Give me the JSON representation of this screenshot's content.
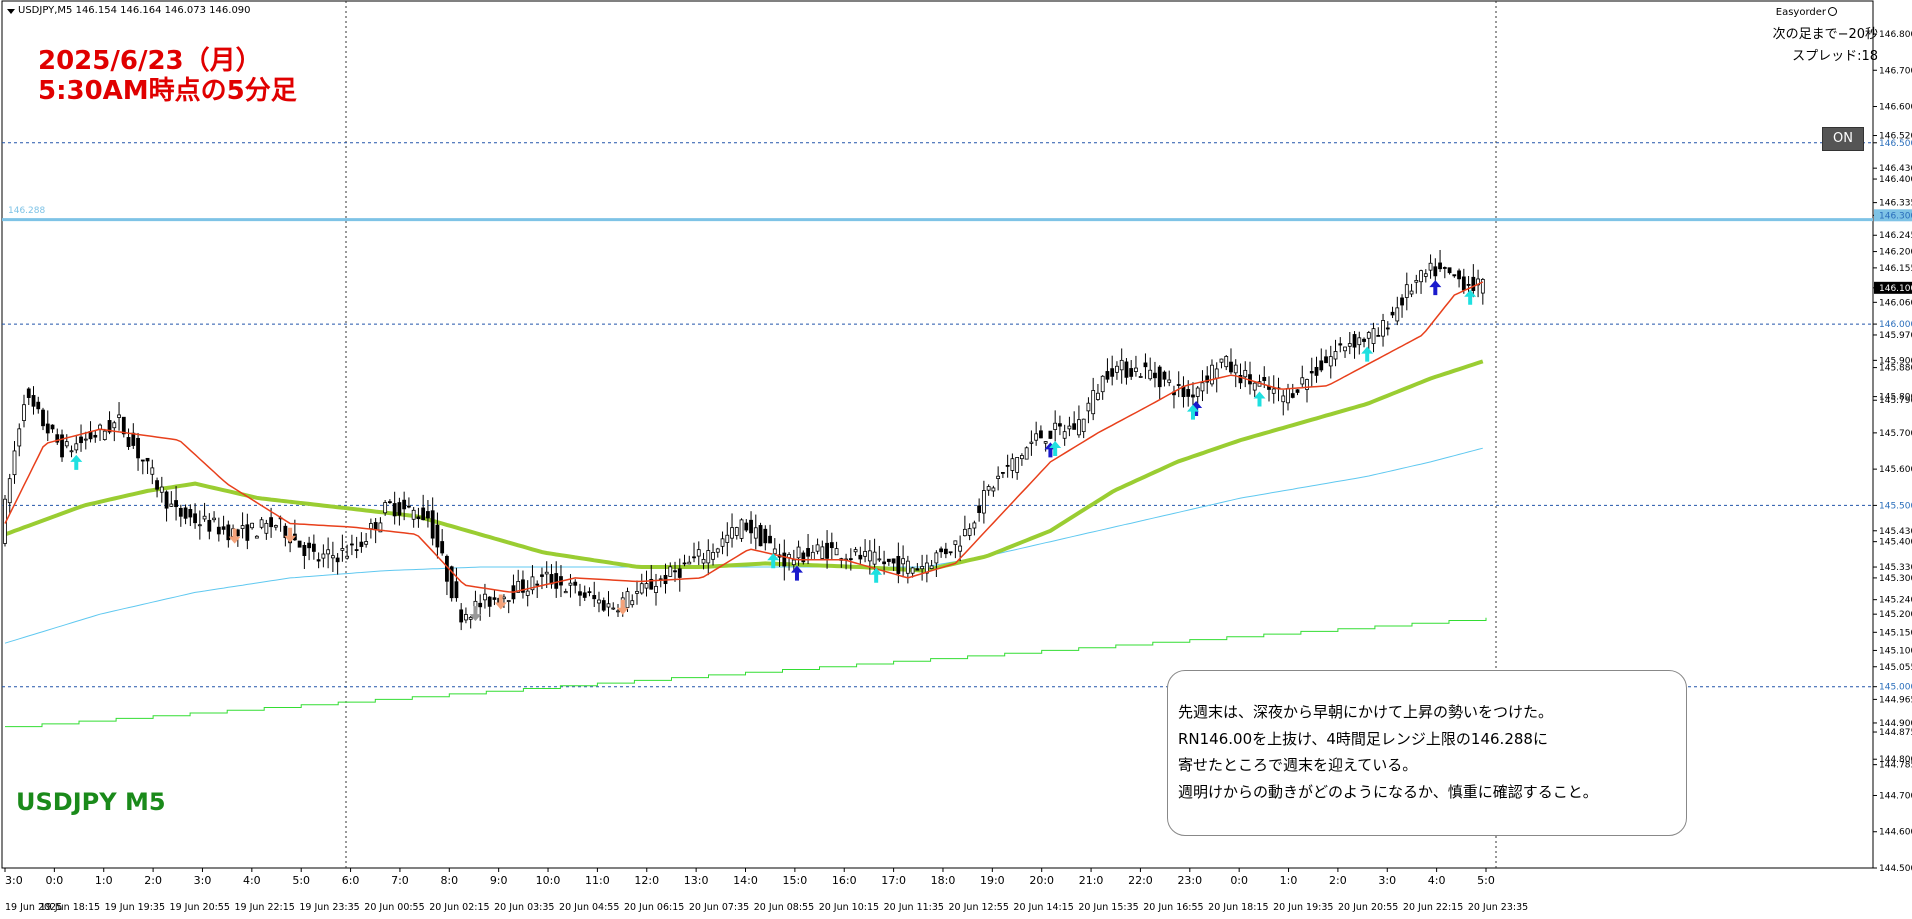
{
  "header": {
    "symbol_info": "USDJPY,M5  146.154 146.164 146.073 146.090",
    "ea_name": "Easyorder",
    "next_bar": "次の足まで−20秒",
    "spread": "スプレッド:18",
    "on_button": "ON"
  },
  "title": {
    "line1": "2025/6/23（月）",
    "line2": "5:30AM時点の5分足"
  },
  "symbol_label": "USDJPY M5",
  "note": {
    "lines": [
      "先週末は、深夜から早朝にかけて上昇の勢いをつけた。",
      "RN146.00を上抜け、4時間足レンジ上限の146.288に",
      "寄せたところで週末を迎えている。",
      "週明けからの動きがどのようになるか、慎重に確認すること。"
    ]
  },
  "level_label": "146.288",
  "colors": {
    "title": "#e00000",
    "symbol_label": "#1a8a1a",
    "level_line": "#7ec3e6",
    "ma_fast": "#e8401c",
    "ma_slow": "#9acd32",
    "ma_blue": "#5fc8f0",
    "ma_green": "#33dd33",
    "grid": "#2255aa"
  },
  "chart_data": {
    "type": "candlestick",
    "symbol": "USDJPY",
    "timeframe": "M5",
    "ylim": [
      144.5,
      146.9
    ],
    "price_axis_labels": [
      "146.800",
      "146.700",
      "146.600",
      "146.520",
      "146.500",
      "146.430",
      "146.400",
      "146.335",
      "146.300",
      "146.245",
      "146.200",
      "146.155",
      "146.100",
      "146.060",
      "146.000",
      "145.970",
      "145.900",
      "145.880",
      "145.800",
      "145.790",
      "145.700",
      "145.600",
      "145.500",
      "145.430",
      "145.400",
      "145.330",
      "145.300",
      "145.240",
      "145.200",
      "145.150",
      "145.100",
      "145.055",
      "145.000",
      "144.965",
      "144.900",
      "144.875",
      "144.800",
      "144.785",
      "144.700",
      "144.600",
      "144.500"
    ],
    "time_axis_top": [
      "3:0",
      "0:0",
      "1:0",
      "2:0",
      "3:0",
      "4:0",
      "5:0",
      "6:0",
      "7:0",
      "8:0",
      "9:0",
      "10:0",
      "11:0",
      "12:0",
      "13:0",
      "14:0",
      "15:0",
      "16:0",
      "17:0",
      "18:0",
      "19:0",
      "20:0",
      "21:0",
      "22:0",
      "23:0",
      "0:0",
      "1:0",
      "2:0",
      "3:0",
      "4:0",
      "5:0"
    ],
    "time_axis_bottom": [
      "19 Jun 2025",
      "19 Jun 18:15",
      "19 Jun 19:35",
      "19 Jun 20:55",
      "19 Jun 22:15",
      "19 Jun 23:35",
      "20 Jun 00:55",
      "20 Jun 02:15",
      "20 Jun 03:35",
      "20 Jun 04:55",
      "20 Jun 06:15",
      "20 Jun 07:35",
      "20 Jun 08:55",
      "20 Jun 10:15",
      "20 Jun 11:35",
      "20 Jun 12:55",
      "20 Jun 14:15",
      "20 Jun 15:35",
      "20 Jun 16:55",
      "20 Jun 18:15",
      "20 Jun 19:35",
      "20 Jun 20:55",
      "20 Jun 22:15",
      "20 Jun 23:35"
    ],
    "horizontal_levels": [
      146.5,
      146.288,
      146.0,
      145.5,
      145.0
    ],
    "price_path": [
      [
        0,
        145.42
      ],
      [
        15,
        145.8
      ],
      [
        40,
        145.65
      ],
      [
        75,
        145.73
      ],
      [
        110,
        145.48
      ],
      [
        150,
        145.42
      ],
      [
        175,
        145.45
      ],
      [
        200,
        145.35
      ],
      [
        225,
        145.38
      ],
      [
        245,
        145.5
      ],
      [
        270,
        145.47
      ],
      [
        290,
        145.2
      ],
      [
        315,
        145.25
      ],
      [
        345,
        145.3
      ],
      [
        385,
        145.22
      ],
      [
        420,
        145.3
      ],
      [
        450,
        145.38
      ],
      [
        470,
        145.45
      ],
      [
        495,
        145.35
      ],
      [
        520,
        145.38
      ],
      [
        560,
        145.34
      ],
      [
        580,
        145.33
      ],
      [
        605,
        145.4
      ],
      [
        625,
        145.55
      ],
      [
        655,
        145.69
      ],
      [
        680,
        145.72
      ],
      [
        700,
        145.88
      ],
      [
        725,
        145.87
      ],
      [
        750,
        145.8
      ],
      [
        770,
        145.9
      ],
      [
        790,
        145.84
      ],
      [
        810,
        145.8
      ],
      [
        830,
        145.87
      ],
      [
        850,
        145.95
      ],
      [
        870,
        145.97
      ],
      [
        890,
        146.1
      ],
      [
        905,
        146.15
      ],
      [
        935,
        146.1
      ]
    ],
    "last_close": 146.09,
    "ma_fast_path": [
      [
        0,
        145.45
      ],
      [
        25,
        145.67
      ],
      [
        60,
        145.71
      ],
      [
        110,
        145.68
      ],
      [
        140,
        145.56
      ],
      [
        180,
        145.45
      ],
      [
        220,
        145.44
      ],
      [
        260,
        145.42
      ],
      [
        290,
        145.28
      ],
      [
        320,
        145.26
      ],
      [
        360,
        145.3
      ],
      [
        400,
        145.29
      ],
      [
        440,
        145.3
      ],
      [
        470,
        145.38
      ],
      [
        500,
        145.35
      ],
      [
        530,
        145.35
      ],
      [
        570,
        145.3
      ],
      [
        600,
        145.34
      ],
      [
        630,
        145.48
      ],
      [
        660,
        145.62
      ],
      [
        690,
        145.7
      ],
      [
        720,
        145.77
      ],
      [
        745,
        145.83
      ],
      [
        775,
        145.86
      ],
      [
        805,
        145.82
      ],
      [
        835,
        145.83
      ],
      [
        865,
        145.9
      ],
      [
        895,
        145.97
      ],
      [
        915,
        146.08
      ],
      [
        935,
        146.12
      ]
    ],
    "ma_slow_path": [
      [
        0,
        145.42
      ],
      [
        50,
        145.5
      ],
      [
        90,
        145.54
      ],
      [
        120,
        145.56
      ],
      [
        160,
        145.52
      ],
      [
        220,
        145.49
      ],
      [
        260,
        145.47
      ],
      [
        300,
        145.42
      ],
      [
        340,
        145.37
      ],
      [
        400,
        145.33
      ],
      [
        440,
        145.33
      ],
      [
        480,
        145.34
      ],
      [
        540,
        145.33
      ],
      [
        580,
        145.32
      ],
      [
        620,
        145.36
      ],
      [
        660,
        145.43
      ],
      [
        700,
        145.54
      ],
      [
        740,
        145.62
      ],
      [
        780,
        145.68
      ],
      [
        820,
        145.73
      ],
      [
        860,
        145.78
      ],
      [
        900,
        145.85
      ],
      [
        935,
        145.9
      ]
    ],
    "ma_blue_path": [
      [
        0,
        145.12
      ],
      [
        60,
        145.2
      ],
      [
        120,
        145.26
      ],
      [
        180,
        145.3
      ],
      [
        240,
        145.32
      ],
      [
        300,
        145.33
      ],
      [
        360,
        145.33
      ],
      [
        420,
        145.33
      ],
      [
        480,
        145.33
      ],
      [
        540,
        145.33
      ],
      [
        580,
        145.33
      ],
      [
        620,
        145.36
      ],
      [
        660,
        145.4
      ],
      [
        700,
        145.44
      ],
      [
        740,
        145.48
      ],
      [
        780,
        145.52
      ],
      [
        820,
        145.55
      ],
      [
        860,
        145.58
      ],
      [
        900,
        145.62
      ],
      [
        935,
        145.66
      ]
    ],
    "ma_green_steps": [
      [
        0,
        144.89
      ],
      [
        935,
        145.19
      ]
    ],
    "signals": [
      {
        "x": 45,
        "type": "up",
        "color": "cyan"
      },
      {
        "x": 145,
        "type": "down",
        "color": "orange"
      },
      {
        "x": 180,
        "type": "down",
        "color": "orange"
      },
      {
        "x": 297,
        "type": "down",
        "color": "gray"
      },
      {
        "x": 313,
        "type": "down",
        "color": "orange"
      },
      {
        "x": 390,
        "type": "down",
        "color": "orange"
      },
      {
        "x": 485,
        "type": "up",
        "color": "cyan"
      },
      {
        "x": 500,
        "type": "up",
        "color": "navy"
      },
      {
        "x": 550,
        "type": "up",
        "color": "cyan"
      },
      {
        "x": 660,
        "type": "up",
        "color": "navy"
      },
      {
        "x": 663,
        "type": "up",
        "color": "cyan"
      },
      {
        "x": 752,
        "type": "up",
        "color": "navy"
      },
      {
        "x": 750,
        "type": "up",
        "color": "cyan"
      },
      {
        "x": 792,
        "type": "up",
        "color": "cyan"
      },
      {
        "x": 860,
        "type": "up",
        "color": "cyan"
      },
      {
        "x": 903,
        "type": "up",
        "color": "navy"
      },
      {
        "x": 925,
        "type": "up",
        "color": "cyan"
      }
    ]
  }
}
